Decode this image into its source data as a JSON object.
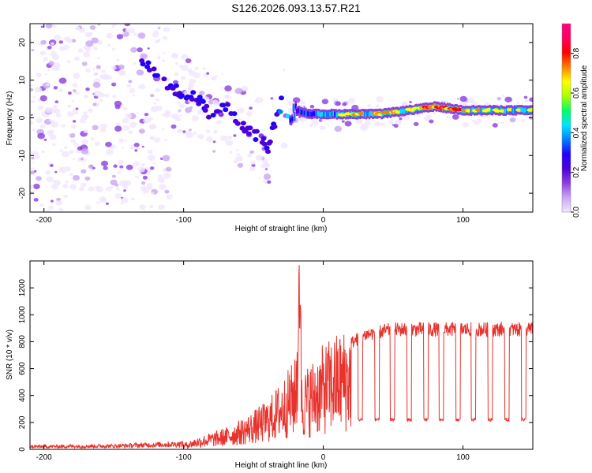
{
  "title": "S126.2026.093.13.57.R21",
  "colorbar": {
    "label": "Normalized spectral amplitude",
    "ticks": [
      "0.0",
      "0.2",
      "0.4",
      "0.6",
      "0.8"
    ],
    "colors": [
      "#f2e6ff",
      "#c9a6f2",
      "#8b3fe0",
      "#4b00d8",
      "#2000ff",
      "#0080ff",
      "#00e5ff",
      "#00ff60",
      "#aaff00",
      "#ffff00",
      "#ff8000",
      "#ff0000",
      "#ff0060",
      "#ff0080"
    ]
  },
  "chart_data": [
    {
      "type": "heatmap",
      "xlabel": "Height of straight line (km)",
      "ylabel": "Frequency (Hz)",
      "xlim": [
        -210,
        150
      ],
      "ylim": [
        -25,
        25
      ],
      "xticks": [
        -200,
        -100,
        0,
        100
      ],
      "yticks": [
        -20,
        -10,
        0,
        10,
        20
      ],
      "xtick_labels": [
        "-200",
        "-100",
        "0",
        "100"
      ],
      "ytick_labels": [
        "-20",
        "-10",
        "0",
        "10",
        "20"
      ],
      "ridge": {
        "x": [
          -130,
          -115,
          -100,
          -90,
          -80,
          -70,
          -60,
          -50,
          -40,
          -30,
          -25,
          -20,
          -10,
          0,
          20,
          40,
          60,
          80,
          100,
          120,
          150
        ],
        "freq": [
          15,
          10,
          6,
          5,
          0,
          3,
          -2,
          -4,
          -8,
          4,
          0,
          2,
          1,
          1,
          1,
          1,
          2,
          3,
          2,
          2,
          2
        ],
        "amplitude": [
          0.3,
          0.35,
          0.35,
          0.3,
          0.3,
          0.3,
          0.3,
          0.3,
          0.3,
          0.4,
          0.6,
          0.5,
          0.6,
          0.6,
          0.75,
          0.8,
          0.7,
          0.9,
          0.8,
          0.7,
          0.7
        ]
      }
    },
    {
      "type": "line",
      "xlabel": "Height of straight line (km)",
      "ylabel": "SNR (10 * v/v)",
      "xlim": [
        -210,
        150
      ],
      "ylim": [
        0,
        1400
      ],
      "xticks": [
        -200,
        -100,
        0,
        100
      ],
      "yticks": [
        0,
        200,
        400,
        600,
        800,
        1000,
        1200
      ],
      "xtick_labels": [
        "-200",
        "-100",
        "0",
        "100"
      ],
      "ytick_labels": [
        "0",
        "200",
        "400",
        "600",
        "800",
        "1000",
        "1200"
      ],
      "color": "#e8322c",
      "envelope": {
        "x": [
          -210,
          -150,
          -100,
          -90,
          -80,
          -70,
          -60,
          -50,
          -40,
          -35,
          -30,
          -25,
          -20,
          -17,
          -15,
          -10,
          -5,
          0,
          5,
          10,
          15,
          20,
          25,
          30,
          40,
          50,
          60,
          150
        ],
        "snr": [
          20,
          25,
          40,
          80,
          110,
          140,
          190,
          250,
          320,
          380,
          450,
          520,
          600,
          1350,
          500,
          560,
          620,
          680,
          720,
          760,
          780,
          800,
          830,
          860,
          880,
          900,
          900,
          900
        ]
      },
      "dropouts": {
        "x_start": [
          25,
          37,
          48,
          60,
          72,
          83,
          95,
          106,
          118,
          130,
          142
        ],
        "x_end": [
          28,
          40,
          51,
          63,
          75,
          86,
          98,
          109,
          121,
          133,
          145
        ],
        "level": 220
      }
    }
  ]
}
